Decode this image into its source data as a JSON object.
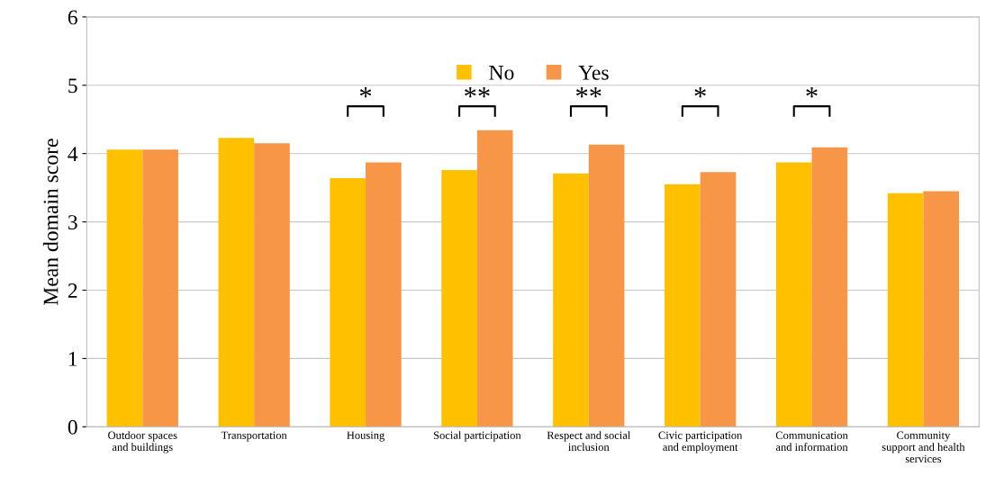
{
  "chart_data": {
    "type": "bar",
    "ylabel": "Mean domain score",
    "categories": [
      "Outdoor spaces\nand buildings",
      "Transportation",
      "Housing",
      "Social participation",
      "Respect and social\ninclusion",
      "Civic participation\nand employment",
      "Communication\nand information",
      "Community\nsupport and health\nservices"
    ],
    "series": [
      {
        "name": "No",
        "color": "#ffc000",
        "values": [
          4.06,
          4.23,
          3.64,
          3.76,
          3.71,
          3.55,
          3.87,
          3.42
        ]
      },
      {
        "name": "Yes",
        "color": "#f79646",
        "values": [
          4.06,
          4.15,
          3.87,
          4.34,
          4.13,
          3.73,
          4.09,
          3.45
        ]
      }
    ],
    "ylim": [
      0,
      6
    ],
    "yticks": [
      0,
      1,
      2,
      3,
      4,
      5,
      6
    ],
    "grid": "y",
    "legend": "top",
    "annotations": [
      "*",
      "**",
      "**",
      "*",
      "*"
    ]
  }
}
